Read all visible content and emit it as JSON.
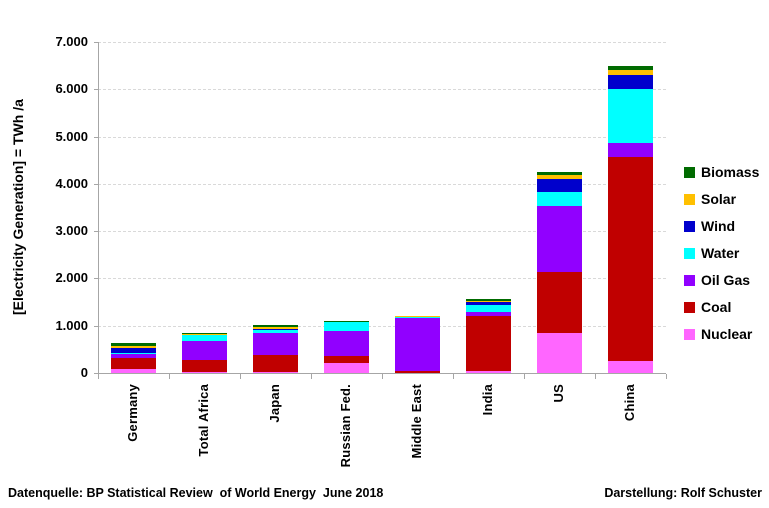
{
  "page": {
    "background": "#FFFFFF",
    "grid_color": "#D9D9D9",
    "axis_color": "#A6A6A6",
    "text_color": "#000000"
  },
  "footer": {
    "left": "Datenquelle: BP Statistical Review  of World Energy  June 2018",
    "right": "Darstellung: Rolf Schuster"
  },
  "chart_data": {
    "type": "bar",
    "stacked": true,
    "title": "",
    "xlabel": "",
    "ylabel": "[Electricity Generation]  =   TWh /a",
    "ylim": [
      0,
      7000
    ],
    "y_tick_step": 1000,
    "y_tick_labels": [
      "0",
      "1.000",
      "2.000",
      "3.000",
      "4.000",
      "5.000",
      "6.000",
      "7.000"
    ],
    "grid": "horizontal-dashed",
    "legend_position": "right",
    "categories": [
      "Germany",
      "Total Africa",
      "Japan",
      "Russian Fed.",
      "Middle East",
      "India",
      "US",
      "China"
    ],
    "series": [
      {
        "name": "Nuclear",
        "color": "#FF66FF",
        "values": [
          76,
          15,
          29,
          203,
          7,
          37,
          850,
          260
        ]
      },
      {
        "name": "Coal",
        "color": "#C00000",
        "values": [
          240,
          255,
          343,
          159,
          30,
          1160,
          1280,
          4300
        ]
      },
      {
        "name": "Oil Gas",
        "color": "#9100FF",
        "values": [
          95,
          405,
          464,
          535,
          1125,
          95,
          1400,
          300
        ]
      },
      {
        "name": "Water",
        "color": "#00FFFF",
        "values": [
          20,
          120,
          79,
          187,
          22,
          140,
          297,
          1140
        ]
      },
      {
        "name": "Wind",
        "color": "#0000CC",
        "values": [
          106,
          14,
          6,
          1,
          1,
          60,
          270,
          300
        ]
      },
      {
        "name": "Solar",
        "color": "#FFC000",
        "values": [
          40,
          9,
          56,
          1,
          8,
          21,
          80,
          110
        ]
      },
      {
        "name": "Biomass",
        "color": "#006B00",
        "values": [
          50,
          2,
          44,
          3,
          0,
          45,
          70,
          85
        ]
      }
    ],
    "legend_order": [
      "Biomass",
      "Solar",
      "Wind",
      "Water",
      "Oil Gas",
      "Coal",
      "Nuclear"
    ]
  }
}
